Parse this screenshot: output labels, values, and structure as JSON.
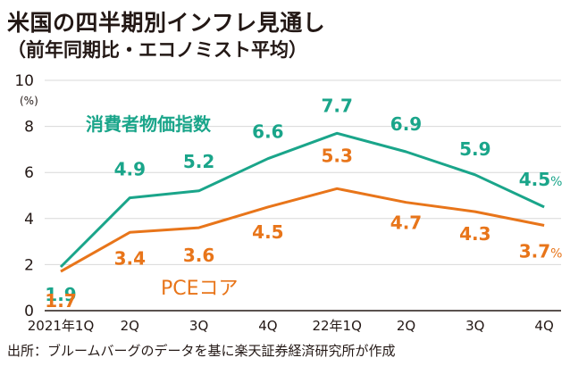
{
  "title": "米国の四半期別インフレ見通し",
  "subtitle": "（前年同期比・エコノミスト平均）",
  "source": "出所：ブルームバーグのデータを基に楽天証券経済研究所が作成",
  "colors": {
    "cpi": "#1aa58a",
    "pce": "#e8751a",
    "axis": "#231815",
    "grid": "#d8d8d8"
  },
  "chart_data": {
    "type": "line",
    "categories": [
      "2021年1Q",
      "2Q",
      "3Q",
      "4Q",
      "22年1Q",
      "2Q",
      "3Q",
      "4Q"
    ],
    "y_unit": "(%)",
    "ylim": [
      0,
      10
    ],
    "yticks": [
      0,
      2,
      4,
      6,
      8,
      10
    ],
    "grid": true,
    "series": [
      {
        "name": "消費者物価指数",
        "values": [
          1.9,
          4.9,
          5.2,
          6.6,
          7.7,
          6.9,
          5.9,
          4.5
        ],
        "labels": [
          "1.9",
          "4.9",
          "5.2",
          "6.6",
          "7.7",
          "6.9",
          "5.9",
          "4.5"
        ]
      },
      {
        "name": "PCEコア",
        "values": [
          1.7,
          3.4,
          3.6,
          4.5,
          5.3,
          4.7,
          4.3,
          3.7
        ],
        "labels": [
          "1.7",
          "3.4",
          "3.6",
          "4.5",
          "5.3",
          "4.7",
          "4.3",
          "3.7"
        ]
      }
    ],
    "end_unit": "%"
  }
}
